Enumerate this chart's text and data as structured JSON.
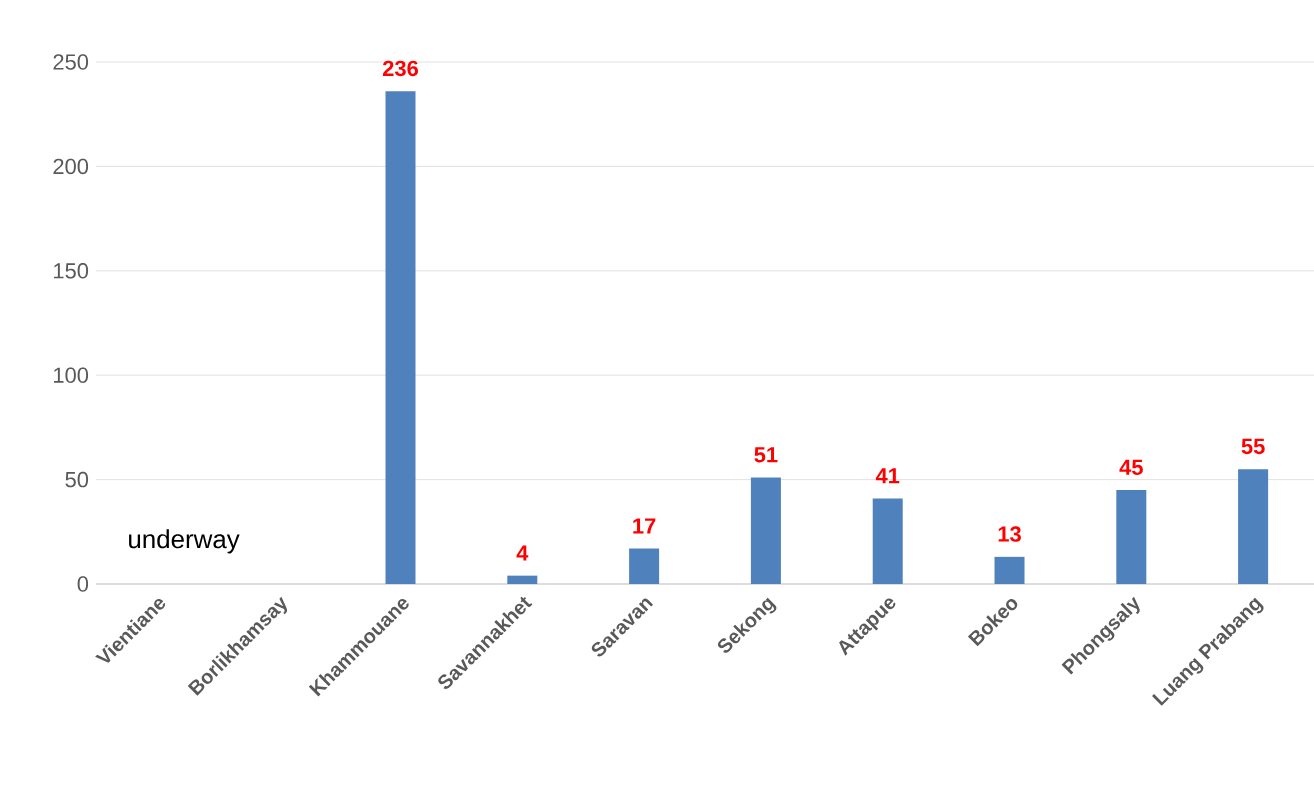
{
  "chart_data": {
    "type": "bar",
    "categories": [
      "Vientiane",
      "Borlikhamsay",
      "Khammouane",
      "Savannakhet",
      "Saravan",
      "Sekong",
      "Attapue",
      "Bokeo",
      "Phongsaly",
      "Luang Prabang"
    ],
    "values": [
      null,
      null,
      236,
      4,
      17,
      51,
      41,
      13,
      45,
      55
    ],
    "color": "#4f81bd",
    "ylim": [
      0,
      250
    ],
    "yticks": [
      0,
      50,
      100,
      150,
      200,
      250
    ],
    "grid": "y",
    "data_labels": true,
    "annotations": [
      "underway"
    ]
  }
}
